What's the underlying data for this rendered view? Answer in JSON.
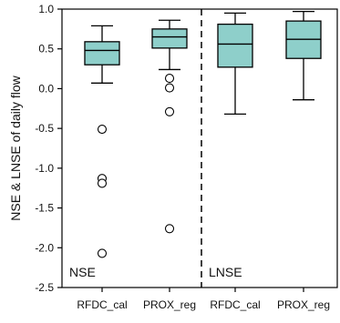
{
  "chart_data": {
    "type": "box",
    "ylabel": "NSE & LNSE of daily flow",
    "ylim": [
      -2.5,
      1.0
    ],
    "yticks": [
      "1.0",
      "0.5",
      "0.0",
      "-0.5",
      "-1.0",
      "-1.5",
      "-2.0",
      "-2.5"
    ],
    "ytick_values": [
      1.0,
      0.5,
      0.0,
      -0.5,
      -1.0,
      -1.5,
      -2.0,
      -2.5
    ],
    "categories": [
      "RFDC_cal",
      "PROX_reg",
      "RFDC_cal",
      "PROX_reg"
    ],
    "panels": [
      {
        "label": "NSE",
        "categories": [
          0,
          1
        ]
      },
      {
        "label": "LNSE",
        "categories": [
          2,
          3
        ]
      }
    ],
    "box_color": "#8ecfca",
    "boxes": [
      {
        "min": 0.07,
        "q1": 0.3,
        "median": 0.48,
        "q3": 0.59,
        "max": 0.79,
        "outliers": [
          -0.51,
          -1.13,
          -1.19,
          -2.07
        ]
      },
      {
        "min": 0.24,
        "q1": 0.51,
        "median": 0.65,
        "q3": 0.75,
        "max": 0.86,
        "outliers": [
          0.13,
          0.01,
          -0.29,
          -1.76
        ]
      },
      {
        "min": -0.32,
        "q1": 0.27,
        "median": 0.56,
        "q3": 0.81,
        "max": 0.95,
        "outliers": []
      },
      {
        "min": -0.14,
        "q1": 0.38,
        "median": 0.62,
        "q3": 0.85,
        "max": 0.97,
        "outliers": []
      }
    ]
  }
}
